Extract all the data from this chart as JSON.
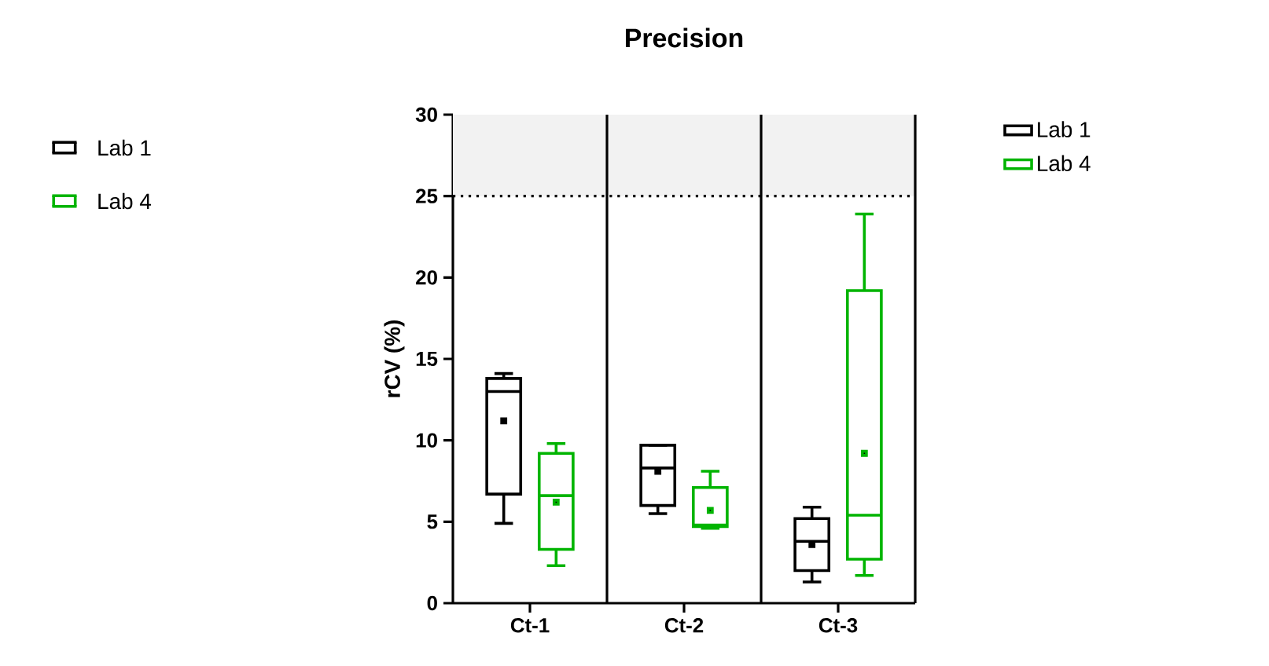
{
  "chart_data": {
    "type": "box",
    "title": "Precision",
    "ylabel": "rCV (%)",
    "categories": [
      "Ct-1",
      "Ct-2",
      "Ct-3"
    ],
    "series": [
      {
        "name": "Lab 1",
        "color": "#000000",
        "boxes": [
          {
            "low": 4.9,
            "q1": 6.7,
            "median": 13.0,
            "q3": 13.8,
            "high": 14.1,
            "mean": 11.2
          },
          {
            "low": 5.5,
            "q1": 6.0,
            "median": 8.3,
            "q3": 9.7,
            "high": 9.7,
            "mean": 8.1
          },
          {
            "low": 1.3,
            "q1": 2.0,
            "median": 3.8,
            "q3": 5.2,
            "high": 5.9,
            "mean": 3.6
          }
        ]
      },
      {
        "name": "Lab 4",
        "color": "#00b400",
        "boxes": [
          {
            "low": 2.3,
            "q1": 3.3,
            "median": 6.6,
            "q3": 9.2,
            "high": 9.8,
            "mean": 6.2
          },
          {
            "low": 4.6,
            "q1": 4.7,
            "median": 4.8,
            "q3": 7.1,
            "high": 8.1,
            "mean": 5.7
          },
          {
            "low": 1.7,
            "q1": 2.7,
            "median": 5.4,
            "q3": 19.2,
            "high": 23.9,
            "mean": 9.2
          }
        ]
      }
    ],
    "ylim": [
      0,
      30
    ],
    "yticks": [
      0,
      5,
      10,
      15,
      20,
      25,
      30
    ],
    "ref_lines": [
      {
        "axis": "y",
        "value": 25,
        "line_style": "dotted"
      }
    ],
    "bands": [
      {
        "axis": "y",
        "from": 25,
        "to": 30,
        "color": "#f2f2f2"
      }
    ],
    "legend": "right"
  }
}
